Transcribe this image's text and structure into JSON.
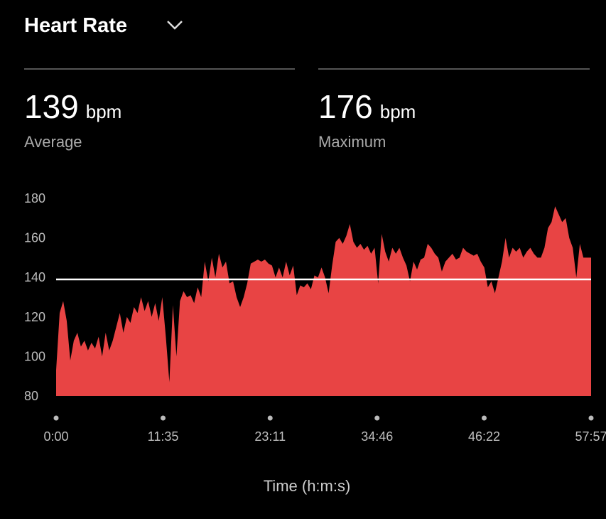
{
  "header": {
    "title": "Heart Rate"
  },
  "stats": [
    {
      "value": 139,
      "unit": "bpm",
      "label": "Average"
    },
    {
      "value": 176,
      "unit": "bpm",
      "label": "Maximum"
    }
  ],
  "chart_data": {
    "type": "area",
    "x_label": "Time (h:m:s)",
    "color": "#e84444",
    "xlim": [
      0,
      3477
    ],
    "xticks": [
      {
        "value": 0,
        "label": "0:00"
      },
      {
        "value": 695,
        "label": "11:35"
      },
      {
        "value": 1391,
        "label": "23:11"
      },
      {
        "value": 2086,
        "label": "34:46"
      },
      {
        "value": 2782,
        "label": "46:22"
      },
      {
        "value": 3477,
        "label": "57:57"
      }
    ],
    "ylim": [
      80,
      180
    ],
    "yticks": [
      80,
      100,
      120,
      140,
      160,
      180
    ],
    "x": [
      0,
      23,
      46,
      69,
      92,
      115,
      138,
      161,
      184,
      207,
      230,
      253,
      276,
      299,
      322,
      345,
      368,
      391,
      414,
      437,
      460,
      483,
      506,
      529,
      552,
      575,
      598,
      621,
      644,
      667,
      690,
      713,
      736,
      759,
      782,
      805,
      828,
      851,
      874,
      897,
      920,
      943,
      966,
      989,
      1012,
      1035,
      1058,
      1081,
      1104,
      1127,
      1150,
      1173,
      1196,
      1219,
      1242,
      1265,
      1288,
      1311,
      1334,
      1357,
      1380,
      1403,
      1426,
      1449,
      1472,
      1495,
      1518,
      1541,
      1564,
      1587,
      1610,
      1633,
      1656,
      1679,
      1702,
      1725,
      1748,
      1771,
      1794,
      1817,
      1840,
      1863,
      1886,
      1909,
      1932,
      1955,
      1978,
      2001,
      2024,
      2047,
      2070,
      2093,
      2116,
      2139,
      2162,
      2185,
      2208,
      2231,
      2254,
      2277,
      2300,
      2323,
      2346,
      2369,
      2392,
      2415,
      2438,
      2461,
      2484,
      2507,
      2530,
      2553,
      2576,
      2599,
      2622,
      2645,
      2668,
      2691,
      2714,
      2737,
      2760,
      2783,
      2806,
      2829,
      2852,
      2875,
      2898,
      2921,
      2944,
      2967,
      2990,
      3013,
      3036,
      3059,
      3082,
      3105,
      3128,
      3151,
      3174,
      3197,
      3220,
      3243,
      3266,
      3289,
      3312,
      3335,
      3358,
      3381,
      3404,
      3427,
      3450,
      3477
    ],
    "values": [
      93,
      122,
      128,
      118,
      98,
      108,
      112,
      105,
      108,
      103,
      107,
      104,
      110,
      100,
      112,
      103,
      108,
      115,
      122,
      112,
      120,
      117,
      125,
      122,
      130,
      123,
      128,
      120,
      127,
      118,
      130,
      110,
      87,
      126,
      100,
      128,
      133,
      130,
      131,
      127,
      135,
      130,
      148,
      138,
      150,
      140,
      152,
      145,
      148,
      137,
      138,
      130,
      125,
      130,
      137,
      147,
      148,
      149,
      148,
      149,
      147,
      146,
      140,
      145,
      140,
      148,
      141,
      146,
      131,
      136,
      135,
      137,
      134,
      141,
      140,
      145,
      140,
      132,
      146,
      158,
      160,
      157,
      161,
      167,
      158,
      155,
      157,
      154,
      156,
      152,
      155,
      137,
      162,
      153,
      148,
      155,
      152,
      155,
      150,
      146,
      138,
      148,
      144,
      149,
      150,
      157,
      155,
      152,
      150,
      143,
      148,
      150,
      152,
      149,
      150,
      155,
      153,
      152,
      151,
      152,
      148,
      145,
      135,
      138,
      132,
      140,
      148,
      160,
      150,
      155,
      153,
      155,
      150,
      153,
      155,
      152,
      150,
      150,
      155,
      165,
      168,
      176,
      172,
      168,
      170,
      160,
      155,
      140,
      157,
      150,
      150,
      150
    ]
  }
}
